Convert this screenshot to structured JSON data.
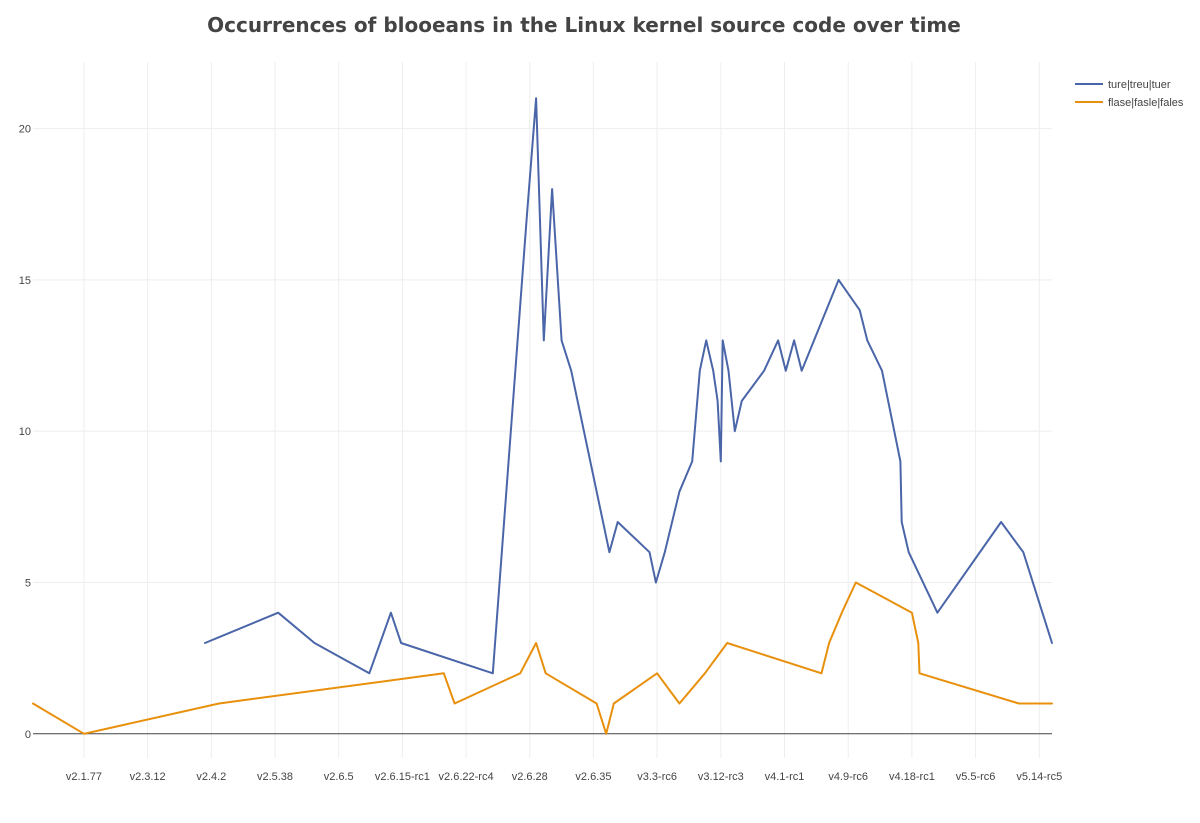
{
  "chart_data": {
    "type": "line",
    "title": "Occurrences of blooeans in the Linux kernel source code over time",
    "xlabel": "",
    "ylabel": "",
    "x_ticks": [
      "v2.1.77",
      "v2.3.12",
      "v2.4.2",
      "v2.5.38",
      "v2.6.5",
      "v2.6.15-rc1",
      "v2.6.22-rc4",
      "v2.6.28",
      "v2.6.35",
      "v3.3-rc6",
      "v3.12-rc3",
      "v4.1-rc1",
      "v4.9-rc6",
      "v4.18-rc1",
      "v5.5-rc6",
      "v5.14-rc5"
    ],
    "x_range": [
      -0.8,
      15.2
    ],
    "ylim": [
      -0.8,
      22.2
    ],
    "y_ticks": [
      0,
      5,
      10,
      15,
      20
    ],
    "grid": true,
    "legend_position": "top-right",
    "series": [
      {
        "name": "ture|treu|tuer",
        "color": "#4a65a8",
        "points": [
          [
            1.9,
            3
          ],
          [
            3.05,
            4
          ],
          [
            3.62,
            3
          ],
          [
            4.48,
            2
          ],
          [
            4.82,
            4
          ],
          [
            4.98,
            3
          ],
          [
            6.42,
            2
          ],
          [
            6.95,
            17
          ],
          [
            7.1,
            21
          ],
          [
            7.22,
            13
          ],
          [
            7.35,
            18
          ],
          [
            7.5,
            13
          ],
          [
            7.65,
            12
          ],
          [
            8.25,
            6
          ],
          [
            8.38,
            7
          ],
          [
            8.88,
            6
          ],
          [
            8.98,
            5
          ],
          [
            9.12,
            6
          ],
          [
            9.35,
            8
          ],
          [
            9.55,
            9
          ],
          [
            9.67,
            12
          ],
          [
            9.77,
            13
          ],
          [
            9.88,
            12
          ],
          [
            9.95,
            11
          ],
          [
            10.0,
            9
          ],
          [
            10.03,
            13
          ],
          [
            10.12,
            12
          ],
          [
            10.22,
            10
          ],
          [
            10.33,
            11
          ],
          [
            10.68,
            12
          ],
          [
            10.9,
            13
          ],
          [
            11.02,
            12
          ],
          [
            11.15,
            13
          ],
          [
            11.27,
            12
          ],
          [
            11.85,
            15
          ],
          [
            12.18,
            14
          ],
          [
            12.3,
            13
          ],
          [
            12.53,
            12
          ],
          [
            12.82,
            9
          ],
          [
            12.84,
            7
          ],
          [
            12.95,
            6
          ],
          [
            13.4,
            4
          ],
          [
            14.4,
            7
          ],
          [
            14.75,
            6
          ],
          [
            15.2,
            3
          ]
        ]
      },
      {
        "name": "flase|fasle|fales",
        "color": "#e8900c",
        "points": [
          [
            -0.8,
            1
          ],
          [
            0.0,
            0
          ],
          [
            2.12,
            1
          ],
          [
            5.65,
            2
          ],
          [
            5.82,
            1
          ],
          [
            6.85,
            2
          ],
          [
            7.1,
            3
          ],
          [
            7.25,
            2
          ],
          [
            8.05,
            1
          ],
          [
            8.2,
            0
          ],
          [
            8.32,
            1
          ],
          [
            9.0,
            2
          ],
          [
            9.35,
            1
          ],
          [
            9.75,
            2
          ],
          [
            10.1,
            3
          ],
          [
            11.58,
            2
          ],
          [
            11.7,
            3
          ],
          [
            11.9,
            4
          ],
          [
            12.12,
            5
          ],
          [
            13.0,
            4
          ],
          [
            13.1,
            3
          ],
          [
            13.12,
            2
          ],
          [
            14.68,
            1
          ],
          [
            15.2,
            1
          ]
        ]
      }
    ]
  }
}
